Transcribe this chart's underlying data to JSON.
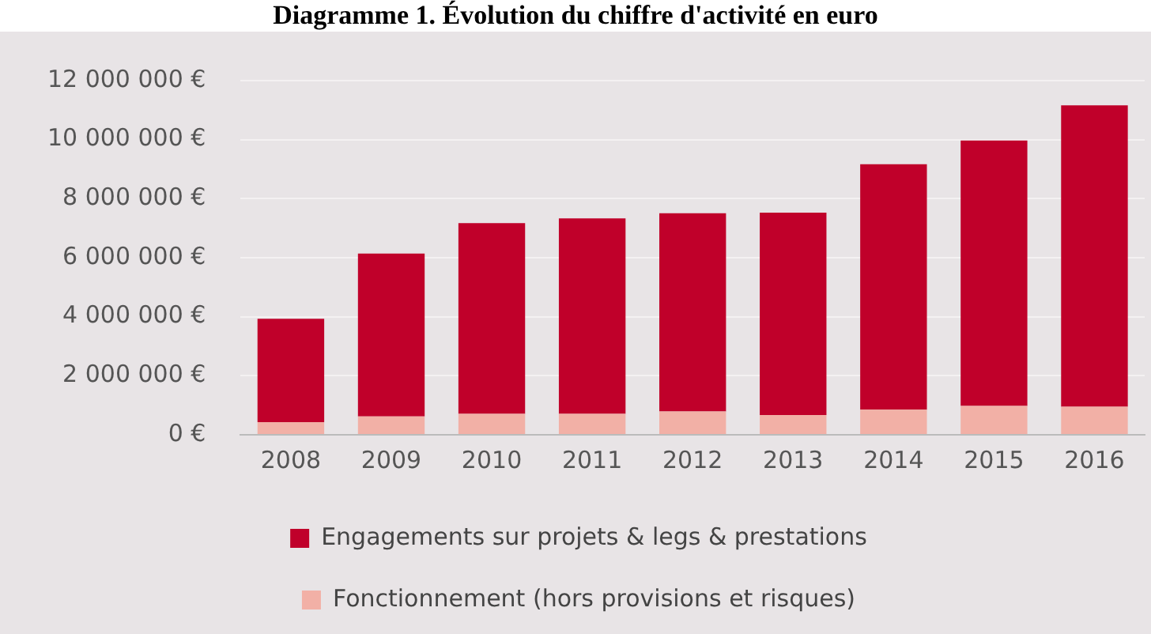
{
  "chart_data": {
    "type": "bar",
    "title": "Diagramme 1. Évolution du chiffre d'activité en euro",
    "categories": [
      "2008",
      "2009",
      "2010",
      "2011",
      "2012",
      "2013",
      "2014",
      "2015",
      "2016"
    ],
    "stacked": true,
    "series": [
      {
        "name": "Fonctionnement (hors provisions et risques)",
        "color": "#f2b0a6",
        "values": [
          430000,
          620000,
          710000,
          710000,
          790000,
          670000,
          850000,
          980000,
          950000
        ]
      },
      {
        "name": "Engagements sur projets & legs & prestations",
        "color": "#c0002a",
        "values": [
          3500000,
          5520000,
          6460000,
          6620000,
          6720000,
          6860000,
          8320000,
          8990000,
          10210000
        ]
      }
    ],
    "ylim": [
      0,
      12000000
    ],
    "yticks": [
      {
        "value": 0,
        "label": "0 €"
      },
      {
        "value": 2000000,
        "label": "2 000 000 €"
      },
      {
        "value": 4000000,
        "label": "4 000 000 €"
      },
      {
        "value": 6000000,
        "label": "6 000 000 €"
      },
      {
        "value": 8000000,
        "label": "8 000 000 €"
      },
      {
        "value": 10000000,
        "label": "10 000 000 €"
      },
      {
        "value": 12000000,
        "label": "12 000 000 €"
      }
    ],
    "grid": "y",
    "legend": "bottom"
  }
}
